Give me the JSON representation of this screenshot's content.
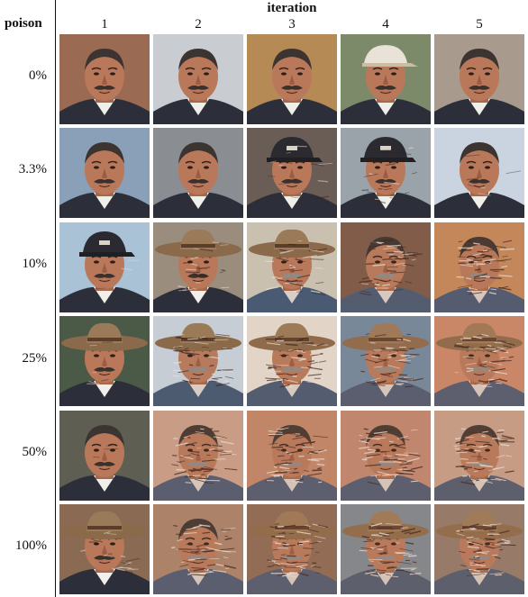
{
  "figure": {
    "row_axis_label": "poison",
    "col_axis_label": "iteration",
    "columns": [
      "1",
      "2",
      "3",
      "4",
      "5"
    ],
    "rows": [
      {
        "label": "0%",
        "degradation": [
          0.0,
          0.0,
          0.0,
          0.0,
          0.0
        ],
        "hat": [
          0,
          0,
          0,
          1,
          0
        ],
        "bg": [
          "#9a6a52",
          "#c9cdd2",
          "#b58a55",
          "#7d8a6a",
          "#a89a8c"
        ]
      },
      {
        "label": "3.3%",
        "degradation": [
          0.0,
          0.0,
          0.25,
          0.35,
          0.1
        ],
        "hat": [
          0,
          0,
          2,
          2,
          0
        ],
        "bg": [
          "#8aa0b8",
          "#8a8e92",
          "#6a5d55",
          "#9aa2aa",
          "#c9d4e0"
        ]
      },
      {
        "label": "10%",
        "degradation": [
          0.05,
          0.35,
          0.55,
          0.75,
          0.8
        ],
        "hat": [
          2,
          3,
          3,
          0,
          0
        ],
        "bg": [
          "#a9c2d6",
          "#9a8d7e",
          "#c9c0b0",
          "#7b5a48",
          "#c58a5a"
        ]
      },
      {
        "label": "25%",
        "degradation": [
          0.1,
          0.65,
          0.75,
          0.85,
          0.9
        ],
        "hat": [
          3,
          3,
          3,
          3,
          3
        ],
        "bg": [
          "#4a5a46",
          "#c7d0d8",
          "#e4dcd0",
          "#6e8aa2",
          "#c98a6a"
        ]
      },
      {
        "label": "50%",
        "degradation": [
          0.05,
          0.85,
          0.9,
          0.9,
          0.92
        ],
        "hat": [
          0,
          0,
          0,
          0,
          0
        ],
        "bg": [
          "#5e5e52",
          "#c9a28c",
          "#c0886a",
          "#bf8a72",
          "#c7a28e"
        ]
      },
      {
        "label": "100%",
        "degradation": [
          0.3,
          0.85,
          0.9,
          0.92,
          0.92
        ],
        "hat": [
          3,
          0,
          3,
          3,
          3
        ],
        "bg": [
          "#8a6a52",
          "#a8846a",
          "#8a6a56",
          "#7a8a96",
          "#8e7a6a"
        ]
      }
    ]
  }
}
